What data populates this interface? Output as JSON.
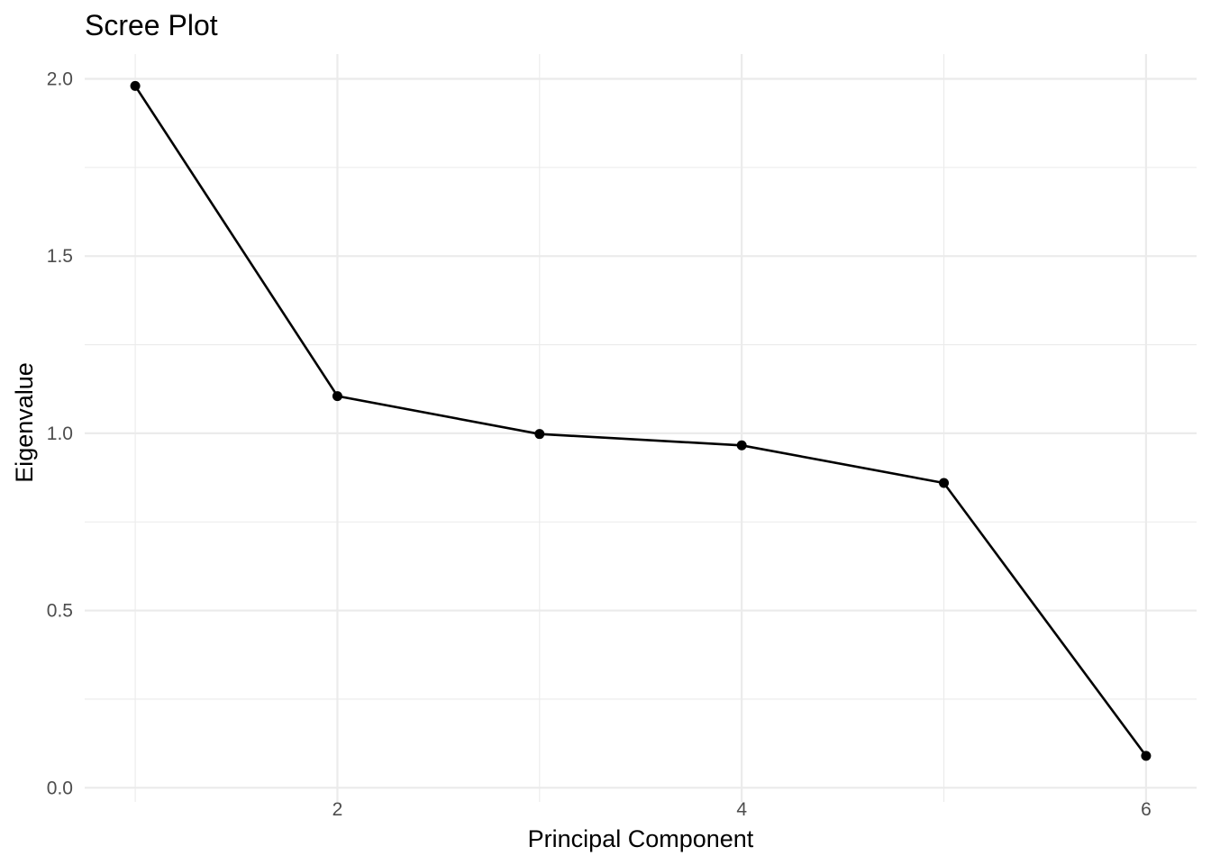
{
  "chart_data": {
    "type": "line",
    "title": "Scree Plot",
    "xlabel": "Principal Component",
    "ylabel": "Eigenvalue",
    "x": [
      1,
      2,
      3,
      4,
      5,
      6
    ],
    "y": [
      1.98,
      1.105,
      0.998,
      0.966,
      0.86,
      0.09
    ],
    "xlim": [
      0.75,
      6.25
    ],
    "ylim": [
      -0.04,
      2.07
    ],
    "x_ticks": [
      2,
      4,
      6
    ],
    "x_tick_labels": [
      "2",
      "4",
      "6"
    ],
    "x_minor_ticks": [
      1,
      3,
      5
    ],
    "y_ticks": [
      0,
      0.5,
      1,
      1.5,
      2
    ],
    "y_tick_labels": [
      "0.0",
      "0.5",
      "1.0",
      "1.5",
      "2.0"
    ],
    "y_minor_ticks": [
      0.25,
      0.75,
      1.25,
      1.75
    ],
    "grid": true,
    "legend": "none",
    "colors": {
      "line": "#000000",
      "points": "#000000",
      "grid": "#ebebeb",
      "tick_text": "#4d4d4d"
    }
  }
}
